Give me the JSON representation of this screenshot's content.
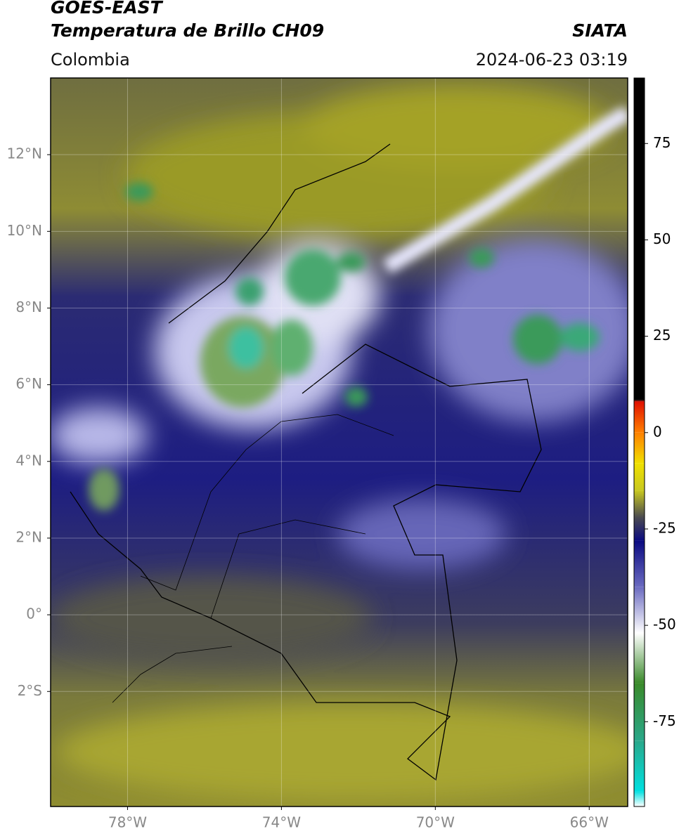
{
  "header": {
    "title": "GOES-EAST",
    "subtitle": "Temperatura de Brillo CH09",
    "source": "SIATA",
    "region": "Colombia",
    "timestamp": "2024-06-23 03:19"
  },
  "map": {
    "lonlim": [
      -80,
      -65
    ],
    "latlim": [
      -5,
      14
    ],
    "grid": true,
    "xticks": [
      {
        "value": -78,
        "label": "78°W"
      },
      {
        "value": -74,
        "label": "74°W"
      },
      {
        "value": -70,
        "label": "70°W"
      },
      {
        "value": -66,
        "label": "66°W"
      }
    ],
    "yticks": [
      {
        "value": 12,
        "label": "12°N"
      },
      {
        "value": 10,
        "label": "10°N"
      },
      {
        "value": 8,
        "label": "8°N"
      },
      {
        "value": 6,
        "label": "6°N"
      },
      {
        "value": 4,
        "label": "4°N"
      },
      {
        "value": 2,
        "label": "2°N"
      },
      {
        "value": 0,
        "label": "0°"
      },
      {
        "value": -2,
        "label": "2°S"
      }
    ]
  },
  "colorbar": {
    "lim": [
      -97,
      92
    ],
    "ticks": [
      75,
      50,
      25,
      0,
      -25,
      -50,
      -75
    ],
    "stops": [
      {
        "value": -97,
        "color": "#ffffff"
      },
      {
        "value": -93,
        "color": "#00e0e0"
      },
      {
        "value": -80,
        "color": "#2aa88a"
      },
      {
        "value": -65,
        "color": "#3a8a2a"
      },
      {
        "value": -52,
        "color": "#ffffff"
      },
      {
        "value": -40,
        "color": "#6a6ac0"
      },
      {
        "value": -28,
        "color": "#0a0a80"
      },
      {
        "value": -22,
        "color": "#4a4a50"
      },
      {
        "value": -15,
        "color": "#c8c820"
      },
      {
        "value": -8,
        "color": "#f0e000"
      },
      {
        "value": 0,
        "color": "#ff8000"
      },
      {
        "value": 8,
        "color": "#e01000"
      },
      {
        "value": 8.5,
        "color": "#000000"
      },
      {
        "value": 92,
        "color": "#000000"
      }
    ]
  }
}
